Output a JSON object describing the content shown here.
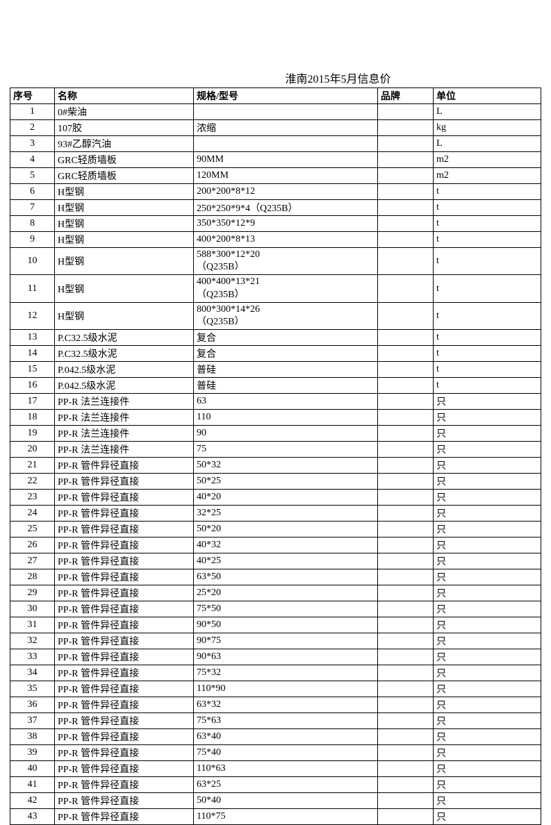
{
  "title": "淮南2015年5月信息价",
  "columns": [
    "序号",
    "名称",
    "规格/型号",
    "品牌",
    "单位"
  ],
  "rows": [
    {
      "seq": "1",
      "name": "0#柴油",
      "spec": "",
      "brand": "",
      "unit": "L"
    },
    {
      "seq": "2",
      "name": "107胶",
      "spec": "浓缩",
      "brand": "",
      "unit": "kg"
    },
    {
      "seq": "3",
      "name": "93#乙醇汽油",
      "spec": "",
      "brand": "",
      "unit": "L"
    },
    {
      "seq": "4",
      "name": "GRC轻质墙板",
      "spec": "90MM",
      "brand": "",
      "unit": "m2"
    },
    {
      "seq": "5",
      "name": "GRC轻质墙板",
      "spec": "120MM",
      "brand": "",
      "unit": "m2"
    },
    {
      "seq": "6",
      "name": "H型钢",
      "spec": "200*200*8*12",
      "brand": "",
      "unit": "t"
    },
    {
      "seq": "7",
      "name": "H型钢",
      "spec": "250*250*9*4（Q235B）",
      "brand": "",
      "unit": "t"
    },
    {
      "seq": "8",
      "name": "H型钢",
      "spec": "350*350*12*9",
      "brand": "",
      "unit": "t"
    },
    {
      "seq": "9",
      "name": "H型钢",
      "spec": "400*200*8*13",
      "brand": "",
      "unit": "t"
    },
    {
      "seq": "10",
      "name": "H型钢",
      "spec": "588*300*12*20\n（Q235B）",
      "brand": "",
      "unit": "t",
      "multiline": true
    },
    {
      "seq": "11",
      "name": "H型钢",
      "spec": "400*400*13*21\n（Q235B）",
      "brand": "",
      "unit": "t",
      "multiline": true
    },
    {
      "seq": "12",
      "name": "H型钢",
      "spec": "800*300*14*26\n（Q235B）",
      "brand": "",
      "unit": "t",
      "multiline": true
    },
    {
      "seq": "13",
      "name": "P.C32.5级水泥",
      "spec": "复合",
      "brand": "",
      "unit": "t"
    },
    {
      "seq": "14",
      "name": "P.C32.5级水泥",
      "spec": "复合",
      "brand": "",
      "unit": "t"
    },
    {
      "seq": "15",
      "name": "P.042.5级水泥",
      "spec": "普硅",
      "brand": "",
      "unit": "t"
    },
    {
      "seq": "16",
      "name": "P.042.5级水泥",
      "spec": "普硅",
      "brand": "",
      "unit": "t"
    },
    {
      "seq": "17",
      "name": "PP-R 法兰连接件",
      "spec": "63",
      "brand": "",
      "unit": "只"
    },
    {
      "seq": "18",
      "name": "PP-R 法兰连接件",
      "spec": "110",
      "brand": "",
      "unit": "只"
    },
    {
      "seq": "19",
      "name": "PP-R 法兰连接件",
      "spec": "90",
      "brand": "",
      "unit": "只"
    },
    {
      "seq": "20",
      "name": "PP-R 法兰连接件",
      "spec": "75",
      "brand": "",
      "unit": "只"
    },
    {
      "seq": "21",
      "name": "PP-R 管件异径直接",
      "spec": "50*32",
      "brand": "",
      "unit": "只"
    },
    {
      "seq": "22",
      "name": "PP-R 管件异径直接",
      "spec": "50*25",
      "brand": "",
      "unit": "只"
    },
    {
      "seq": "23",
      "name": "PP-R 管件异径直接",
      "spec": "40*20",
      "brand": "",
      "unit": "只"
    },
    {
      "seq": "24",
      "name": "PP-R 管件异径直接",
      "spec": "32*25",
      "brand": "",
      "unit": "只"
    },
    {
      "seq": "25",
      "name": "PP-R 管件异径直接",
      "spec": "50*20",
      "brand": "",
      "unit": "只"
    },
    {
      "seq": "26",
      "name": "PP-R 管件异径直接",
      "spec": "40*32",
      "brand": "",
      "unit": "只"
    },
    {
      "seq": "27",
      "name": "PP-R 管件异径直接",
      "spec": "40*25",
      "brand": "",
      "unit": "只"
    },
    {
      "seq": "28",
      "name": "PP-R 管件异径直接",
      "spec": "63*50",
      "brand": "",
      "unit": "只"
    },
    {
      "seq": "29",
      "name": "PP-R 管件异径直接",
      "spec": "25*20",
      "brand": "",
      "unit": "只"
    },
    {
      "seq": "30",
      "name": "PP-R 管件异径直接",
      "spec": "75*50",
      "brand": "",
      "unit": "只"
    },
    {
      "seq": "31",
      "name": "PP-R 管件异径直接",
      "spec": "90*50",
      "brand": "",
      "unit": "只"
    },
    {
      "seq": "32",
      "name": "PP-R 管件异径直接",
      "spec": "90*75",
      "brand": "",
      "unit": "只"
    },
    {
      "seq": "33",
      "name": "PP-R 管件异径直接",
      "spec": "90*63",
      "brand": "",
      "unit": "只"
    },
    {
      "seq": "34",
      "name": "PP-R 管件异径直接",
      "spec": "75*32",
      "brand": "",
      "unit": "只"
    },
    {
      "seq": "35",
      "name": "PP-R 管件异径直接",
      "spec": "110*90",
      "brand": "",
      "unit": "只"
    },
    {
      "seq": "36",
      "name": "PP-R 管件异径直接",
      "spec": "63*32",
      "brand": "",
      "unit": "只"
    },
    {
      "seq": "37",
      "name": "PP-R 管件异径直接",
      "spec": "75*63",
      "brand": "",
      "unit": "只"
    },
    {
      "seq": "38",
      "name": "PP-R 管件异径直接",
      "spec": "63*40",
      "brand": "",
      "unit": "只"
    },
    {
      "seq": "39",
      "name": "PP-R 管件异径直接",
      "spec": "75*40",
      "brand": "",
      "unit": "只"
    },
    {
      "seq": "40",
      "name": "PP-R 管件异径直接",
      "spec": "110*63",
      "brand": "",
      "unit": "只"
    },
    {
      "seq": "41",
      "name": "PP-R 管件异径直接",
      "spec": "63*25",
      "brand": "",
      "unit": "只"
    },
    {
      "seq": "42",
      "name": "PP-R 管件异径直接",
      "spec": "50*40",
      "brand": "",
      "unit": "只"
    },
    {
      "seq": "43",
      "name": "PP-R 管件异径直接",
      "spec": "110*75",
      "brand": "",
      "unit": "只"
    }
  ]
}
